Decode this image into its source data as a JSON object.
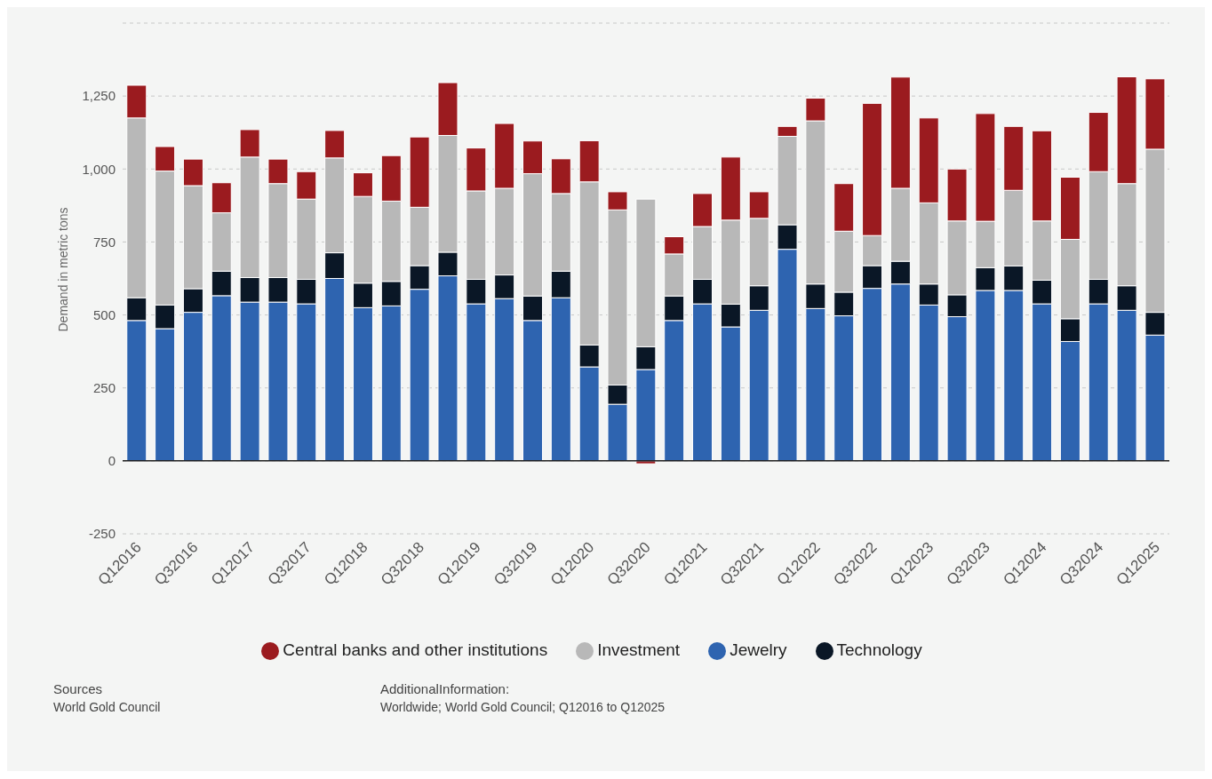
{
  "chart_data": {
    "type": "bar",
    "stacked": true,
    "ylabel": "Demand in metric tons",
    "categories": [
      "Q12016",
      null,
      "Q32016",
      null,
      "Q12017",
      null,
      "Q32017",
      null,
      "Q12018",
      null,
      "Q32018",
      null,
      "Q12019",
      null,
      "Q32019",
      null,
      "Q12020",
      null,
      "Q32020",
      null,
      "Q12021",
      null,
      "Q32021",
      null,
      "Q12022",
      null,
      "Q32022",
      null,
      "Q12023",
      null,
      "Q32023",
      null,
      "Q12024",
      null,
      "Q32024",
      null,
      "Q12025"
    ],
    "series": [
      {
        "name": "Jewelry",
        "color": "#2e64b0",
        "values": [
          481,
          453,
          509,
          566,
          544,
          544,
          538,
          625,
          525,
          531,
          588,
          634,
          538,
          556,
          481,
          559,
          322,
          194,
          313,
          481,
          538,
          459,
          516,
          725,
          522,
          497,
          591,
          606,
          534,
          494,
          584,
          584,
          538,
          409,
          538,
          516,
          431
        ]
      },
      {
        "name": "Technology",
        "color": "#0a1726",
        "values": [
          78,
          81,
          81,
          84,
          84,
          84,
          84,
          88,
          84,
          84,
          81,
          81,
          84,
          81,
          84,
          91,
          75,
          66,
          78,
          84,
          84,
          78,
          84,
          84,
          84,
          81,
          78,
          78,
          72,
          75,
          78,
          84,
          81,
          78,
          84,
          84,
          78
        ]
      },
      {
        "name": "Investment",
        "color": "#b8b8b8",
        "values": [
          616,
          459,
          353,
          200,
          413,
          322,
          275,
          325,
          297,
          275,
          200,
          400,
          303,
          297,
          419,
          266,
          559,
          600,
          506,
          144,
          181,
          288,
          231,
          303,
          559,
          209,
          103,
          250,
          278,
          253,
          159,
          259,
          203,
          272,
          369,
          350,
          559
        ]
      },
      {
        "name": "Central banks and other institutions",
        "color": "#9b1b1f",
        "values": [
          112,
          84,
          91,
          103,
          94,
          84,
          94,
          94,
          81,
          156,
          241,
          181,
          147,
          222,
          112,
          119,
          141,
          62,
          -10,
          59,
          113,
          216,
          91,
          34,
          78,
          163,
          453,
          381,
          291,
          178,
          369,
          219,
          309,
          213,
          203,
          366,
          241
        ]
      }
    ],
    "ylim": [
      -250,
      1500
    ],
    "yticks": [
      -250,
      0,
      250,
      500,
      750,
      {
        "value": 1000,
        "label": "1,000"
      },
      {
        "value": 1250,
        "label": "1,250"
      },
      {
        "value": 1500,
        "label": null
      }
    ],
    "grid": "y",
    "legend": "bottom",
    "annotations": [
      "Sources",
      "World Gold Council",
      "AdditionalInformation:",
      "Worldwide; World Gold Council; Q12016 to Q12025"
    ]
  }
}
